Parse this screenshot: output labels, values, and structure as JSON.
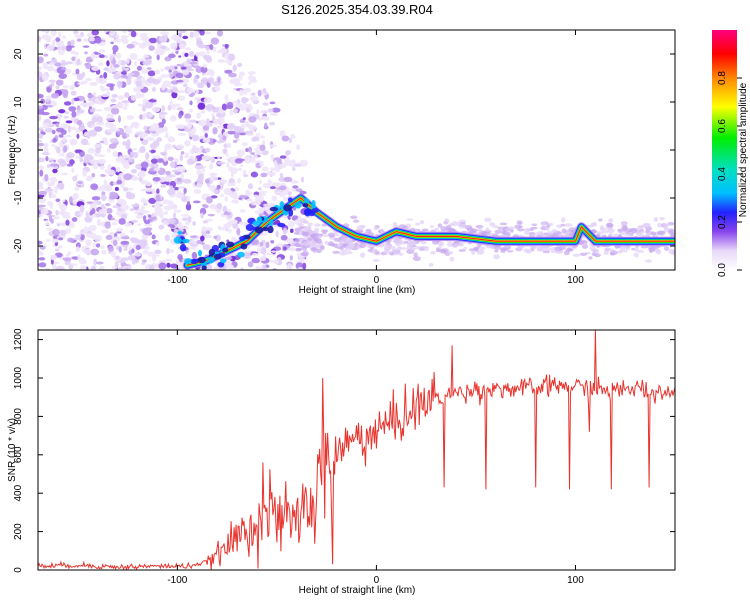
{
  "chart_data": [
    {
      "type": "heatmap",
      "title": "S126.2025.354.03.39.R04",
      "xlabel": "Height of straight line (km)",
      "ylabel": "Frequency (Hz)",
      "xlim": [
        -170,
        150
      ],
      "ylim": [
        -25,
        25
      ],
      "x_ticks": [
        -100,
        0,
        100
      ],
      "y_ticks": [
        -20,
        -10,
        0,
        10,
        20
      ],
      "colorbar": {
        "label": "Normalized spectral amplitude",
        "range": [
          0,
          1
        ],
        "ticks": [
          "0.0",
          "0.2",
          "0.4",
          "0.6",
          "0.8"
        ]
      },
      "dominant_track": {
        "x": [
          -95,
          -85,
          -75,
          -65,
          -55,
          -45,
          -38,
          -30,
          -20,
          -10,
          0,
          10,
          20,
          40,
          60,
          80,
          90,
          100,
          103,
          110,
          130,
          150
        ],
        "y": [
          -24,
          -23,
          -21,
          -19,
          -15,
          -12,
          -10,
          -13,
          -16,
          -18,
          -19,
          -17,
          -18,
          -18,
          -19,
          -19,
          -19,
          -19,
          -16,
          -19,
          -19,
          -19
        ]
      }
    },
    {
      "type": "line",
      "xlabel": "Height of straight line (km)",
      "ylabel": "SNR (10 * v/v)",
      "xlim": [
        -170,
        150
      ],
      "ylim": [
        0,
        1250
      ],
      "x_ticks": [
        -100,
        0,
        100
      ],
      "y_ticks": [
        0,
        200,
        400,
        600,
        800,
        1000,
        1200
      ],
      "color": "#e8332d",
      "series": [
        {
          "name": "SNR",
          "x": [
            -170,
            -150,
            -130,
            -110,
            -95,
            -85,
            -75,
            -65,
            -55,
            -48,
            -42,
            -35,
            -30,
            -25,
            -20,
            -12,
            -5,
            0,
            10,
            20,
            30,
            40,
            50,
            60,
            70,
            80,
            90,
            100,
            110,
            120,
            130,
            140,
            150
          ],
          "y": [
            20,
            25,
            15,
            20,
            20,
            40,
            120,
            220,
            300,
            250,
            260,
            320,
            400,
            480,
            600,
            680,
            700,
            720,
            780,
            850,
            900,
            920,
            940,
            950,
            940,
            950,
            960,
            955,
            945,
            930,
            950,
            930,
            920
          ]
        }
      ]
    }
  ]
}
